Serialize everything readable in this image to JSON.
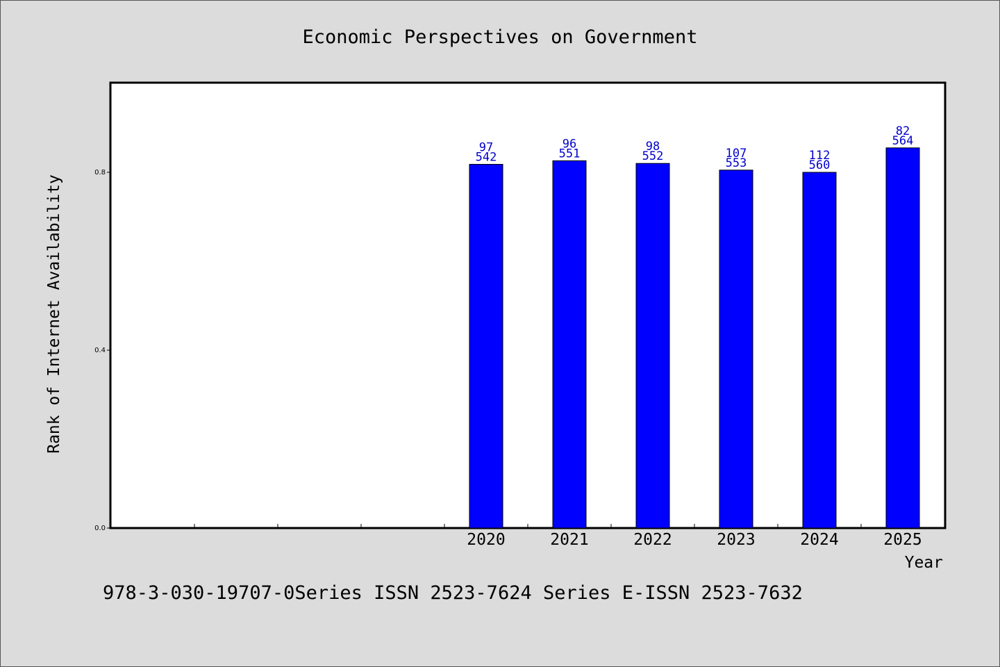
{
  "chart_data": {
    "type": "bar",
    "title": "Economic Perspectives on Government",
    "xlabel": "Year",
    "ylabel": "Rank of Internet Availability",
    "ylim": [
      0,
      1.0
    ],
    "yticks": [
      0.0,
      0.4,
      0.8
    ],
    "ytick_labels": [
      "0.0",
      "0.4",
      "0.8"
    ],
    "x_slots": 10,
    "categories": [
      "2020",
      "2021",
      "2022",
      "2023",
      "2024",
      "2025"
    ],
    "category_slot_start": 4,
    "values": [
      0.818,
      0.826,
      0.82,
      0.805,
      0.8,
      0.855
    ],
    "data_labels": [
      {
        "top": "97",
        "bottom": "542"
      },
      {
        "top": "96",
        "bottom": "551"
      },
      {
        "top": "98",
        "bottom": "552"
      },
      {
        "top": "107",
        "bottom": "553"
      },
      {
        "top": "112",
        "bottom": "560"
      },
      {
        "top": "82",
        "bottom": "564"
      }
    ],
    "bar_color": "#0000ff",
    "label_color": "#0000cc",
    "grid": false,
    "legend": "none"
  },
  "footer": {
    "text": "978-3-030-19707-0Series ISSN 2523-7624 Series E-ISSN 2523-7632"
  }
}
